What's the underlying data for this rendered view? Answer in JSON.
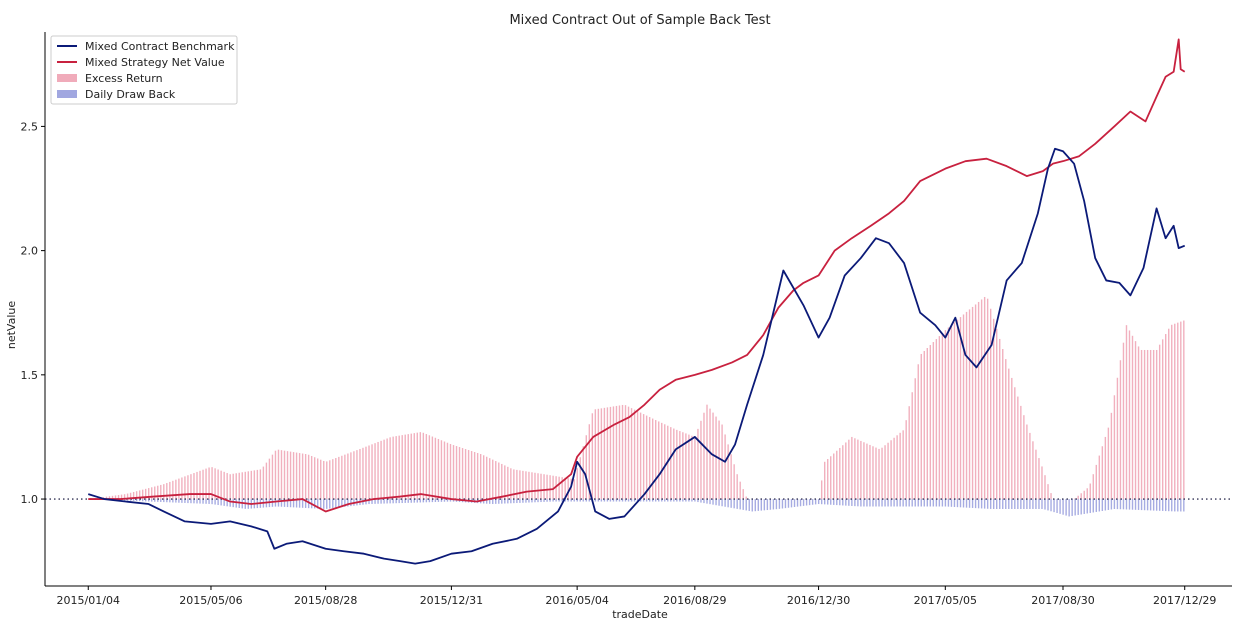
{
  "colors": {
    "benchmark": "#0b1a78",
    "strategy": "#c8213f",
    "excess": "#eb8fa3",
    "drawback": "#8289d6",
    "baseline": "#333355"
  },
  "chart_data": {
    "type": "line",
    "title": "Mixed Contract Out of Sample Back Test",
    "xlabel": "tradeDate",
    "ylabel": "netValue",
    "x_ticks": [
      "2015/01/04",
      "2015/05/06",
      "2015/08/28",
      "2015/12/31",
      "2016/05/04",
      "2016/08/29",
      "2016/12/30",
      "2017/05/05",
      "2017/08/30",
      "2017/12/29"
    ],
    "y_ticks": [
      "1.0",
      "1.5",
      "2.0",
      "2.5"
    ],
    "ylim": [
      0.65,
      2.88
    ],
    "xlim": [
      "2014/11/22",
      "2018/02/14"
    ],
    "baseline": 1.0,
    "grid": false,
    "legend_position": "top-left",
    "legend": [
      {
        "label": "Mixed Contract Benchmark",
        "kind": "line",
        "color_key": "benchmark"
      },
      {
        "label": "Mixed Strategy Net Value",
        "kind": "line",
        "color_key": "strategy"
      },
      {
        "label": "Excess Return",
        "kind": "patch",
        "color_key": "excess"
      },
      {
        "label": "Daily Draw Back",
        "kind": "patch",
        "color_key": "drawback"
      }
    ],
    "series": [
      {
        "name": "Mixed Contract Benchmark",
        "points": [
          [
            "2015/01/04",
            1.02
          ],
          [
            "2015/01/20",
            1.0
          ],
          [
            "2015/02/10",
            0.99
          ],
          [
            "2015/03/05",
            0.98
          ],
          [
            "2015/03/20",
            0.95
          ],
          [
            "2015/04/10",
            0.91
          ],
          [
            "2015/05/06",
            0.9
          ],
          [
            "2015/05/25",
            0.91
          ],
          [
            "2015/06/15",
            0.89
          ],
          [
            "2015/07/01",
            0.87
          ],
          [
            "2015/07/08",
            0.8
          ],
          [
            "2015/07/20",
            0.82
          ],
          [
            "2015/08/05",
            0.83
          ],
          [
            "2015/08/28",
            0.8
          ],
          [
            "2015/09/15",
            0.79
          ],
          [
            "2015/10/05",
            0.78
          ],
          [
            "2015/10/25",
            0.76
          ],
          [
            "2015/11/10",
            0.75
          ],
          [
            "2015/11/25",
            0.74
          ],
          [
            "2015/12/10",
            0.75
          ],
          [
            "2015/12/31",
            0.78
          ],
          [
            "2016/01/20",
            0.79
          ],
          [
            "2016/02/10",
            0.82
          ],
          [
            "2016/03/05",
            0.84
          ],
          [
            "2016/03/25",
            0.88
          ],
          [
            "2016/04/15",
            0.95
          ],
          [
            "2016/04/28",
            1.05
          ],
          [
            "2016/05/04",
            1.15
          ],
          [
            "2016/05/12",
            1.1
          ],
          [
            "2016/05/22",
            0.95
          ],
          [
            "2016/06/05",
            0.92
          ],
          [
            "2016/06/20",
            0.93
          ],
          [
            "2016/07/10",
            1.02
          ],
          [
            "2016/07/25",
            1.1
          ],
          [
            "2016/08/10",
            1.2
          ],
          [
            "2016/08/29",
            1.25
          ],
          [
            "2016/09/15",
            1.18
          ],
          [
            "2016/09/28",
            1.15
          ],
          [
            "2016/10/08",
            1.22
          ],
          [
            "2016/10/20",
            1.38
          ],
          [
            "2016/11/05",
            1.58
          ],
          [
            "2016/11/15",
            1.75
          ],
          [
            "2016/11/25",
            1.92
          ],
          [
            "2016/12/05",
            1.85
          ],
          [
            "2016/12/15",
            1.78
          ],
          [
            "2016/12/30",
            1.65
          ],
          [
            "2017/01/10",
            1.73
          ],
          [
            "2017/01/25",
            1.9
          ],
          [
            "2017/02/10",
            1.97
          ],
          [
            "2017/02/25",
            2.05
          ],
          [
            "2017/03/10",
            2.03
          ],
          [
            "2017/03/25",
            1.95
          ],
          [
            "2017/04/10",
            1.75
          ],
          [
            "2017/04/25",
            1.7
          ],
          [
            "2017/05/05",
            1.65
          ],
          [
            "2017/05/15",
            1.73
          ],
          [
            "2017/05/25",
            1.58
          ],
          [
            "2017/06/05",
            1.53
          ],
          [
            "2017/06/20",
            1.62
          ],
          [
            "2017/07/05",
            1.88
          ],
          [
            "2017/07/20",
            1.95
          ],
          [
            "2017/08/05",
            2.15
          ],
          [
            "2017/08/15",
            2.33
          ],
          [
            "2017/08/22",
            2.41
          ],
          [
            "2017/08/30",
            2.4
          ],
          [
            "2017/09/10",
            2.35
          ],
          [
            "2017/09/20",
            2.2
          ],
          [
            "2017/10/01",
            1.97
          ],
          [
            "2017/10/12",
            1.88
          ],
          [
            "2017/10/25",
            1.87
          ],
          [
            "2017/11/05",
            1.82
          ],
          [
            "2017/11/18",
            1.93
          ],
          [
            "2017/12/01",
            2.17
          ],
          [
            "2017/12/10",
            2.05
          ],
          [
            "2017/12/18",
            2.1
          ],
          [
            "2017/12/23",
            2.01
          ],
          [
            "2017/12/29",
            2.02
          ]
        ]
      },
      {
        "name": "Mixed Strategy Net Value",
        "points": [
          [
            "2015/01/04",
            1.0
          ],
          [
            "2015/02/05",
            1.0
          ],
          [
            "2015/03/10",
            1.01
          ],
          [
            "2015/04/15",
            1.02
          ],
          [
            "2015/05/06",
            1.02
          ],
          [
            "2015/05/25",
            0.99
          ],
          [
            "2015/06/15",
            0.98
          ],
          [
            "2015/07/10",
            0.99
          ],
          [
            "2015/08/05",
            1.0
          ],
          [
            "2015/08/28",
            0.95
          ],
          [
            "2015/09/20",
            0.98
          ],
          [
            "2015/10/15",
            1.0
          ],
          [
            "2015/11/10",
            1.01
          ],
          [
            "2015/12/01",
            1.02
          ],
          [
            "2015/12/31",
            1.0
          ],
          [
            "2016/01/25",
            0.99
          ],
          [
            "2016/02/20",
            1.01
          ],
          [
            "2016/03/15",
            1.03
          ],
          [
            "2016/04/10",
            1.04
          ],
          [
            "2016/04/28",
            1.1
          ],
          [
            "2016/05/04",
            1.17
          ],
          [
            "2016/05/20",
            1.25
          ],
          [
            "2016/06/10",
            1.3
          ],
          [
            "2016/06/25",
            1.33
          ],
          [
            "2016/07/10",
            1.38
          ],
          [
            "2016/07/25",
            1.44
          ],
          [
            "2016/08/10",
            1.48
          ],
          [
            "2016/08/29",
            1.5
          ],
          [
            "2016/09/15",
            1.52
          ],
          [
            "2016/10/05",
            1.55
          ],
          [
            "2016/10/20",
            1.58
          ],
          [
            "2016/11/05",
            1.66
          ],
          [
            "2016/11/20",
            1.77
          ],
          [
            "2016/12/05",
            1.84
          ],
          [
            "2016/12/15",
            1.87
          ],
          [
            "2016/12/30",
            1.9
          ],
          [
            "2017/01/15",
            2.0
          ],
          [
            "2017/02/01",
            2.05
          ],
          [
            "2017/02/20",
            2.1
          ],
          [
            "2017/03/10",
            2.15
          ],
          [
            "2017/03/25",
            2.2
          ],
          [
            "2017/04/10",
            2.28
          ],
          [
            "2017/05/05",
            2.33
          ],
          [
            "2017/05/25",
            2.36
          ],
          [
            "2017/06/15",
            2.37
          ],
          [
            "2017/07/05",
            2.34
          ],
          [
            "2017/07/25",
            2.3
          ],
          [
            "2017/08/10",
            2.32
          ],
          [
            "2017/08/20",
            2.35
          ],
          [
            "2017/08/30",
            2.36
          ],
          [
            "2017/09/15",
            2.38
          ],
          [
            "2017/10/01",
            2.43
          ],
          [
            "2017/10/20",
            2.5
          ],
          [
            "2017/11/05",
            2.56
          ],
          [
            "2017/11/20",
            2.52
          ],
          [
            "2017/12/01",
            2.62
          ],
          [
            "2017/12/10",
            2.7
          ],
          [
            "2017/12/18",
            2.72
          ],
          [
            "2017/12/23",
            2.85
          ],
          [
            "2017/12/25",
            2.73
          ],
          [
            "2017/12/29",
            2.72
          ]
        ]
      },
      {
        "name": "Excess Return",
        "kind": "bars",
        "points": [
          [
            "2015/01/04",
            1.0
          ],
          [
            "2015/02/10",
            1.02
          ],
          [
            "2015/03/20",
            1.06
          ],
          [
            "2015/05/06",
            1.13
          ],
          [
            "2015/05/25",
            1.1
          ],
          [
            "2015/06/25",
            1.12
          ],
          [
            "2015/07/10",
            1.2
          ],
          [
            "2015/08/10",
            1.18
          ],
          [
            "2015/08/28",
            1.15
          ],
          [
            "2015/09/30",
            1.2
          ],
          [
            "2015/11/01",
            1.25
          ],
          [
            "2015/12/01",
            1.27
          ],
          [
            "2015/12/31",
            1.22
          ],
          [
            "2016/01/30",
            1.18
          ],
          [
            "2016/03/01",
            1.12
          ],
          [
            "2016/04/01",
            1.1
          ],
          [
            "2016/05/01",
            1.08
          ],
          [
            "2016/05/20",
            1.36
          ],
          [
            "2016/06/20",
            1.38
          ],
          [
            "2016/07/20",
            1.32
          ],
          [
            "2016/08/10",
            1.28
          ],
          [
            "2016/08/29",
            1.25
          ],
          [
            "2016/09/10",
            1.38
          ],
          [
            "2016/09/25",
            1.3
          ],
          [
            "2016/10/10",
            1.1
          ],
          [
            "2016/10/20",
            1.0
          ],
          [
            "2016/12/30",
            1.0
          ],
          [
            "2017/01/05",
            1.15
          ],
          [
            "2017/02/01",
            1.25
          ],
          [
            "2017/03/01",
            1.2
          ],
          [
            "2017/03/25",
            1.28
          ],
          [
            "2017/04/10",
            1.58
          ],
          [
            "2017/05/05",
            1.68
          ],
          [
            "2017/05/25",
            1.75
          ],
          [
            "2017/06/15",
            1.82
          ],
          [
            "2017/07/05",
            1.55
          ],
          [
            "2017/07/25",
            1.3
          ],
          [
            "2017/08/10",
            1.12
          ],
          [
            "2017/08/20",
            1.0
          ],
          [
            "2017/09/10",
            1.0
          ],
          [
            "2017/09/25",
            1.05
          ],
          [
            "2017/10/15",
            1.3
          ],
          [
            "2017/11/01",
            1.7
          ],
          [
            "2017/11/15",
            1.6
          ],
          [
            "2017/12/01",
            1.6
          ],
          [
            "2017/12/15",
            1.7
          ],
          [
            "2017/12/29",
            1.72
          ]
        ]
      },
      {
        "name": "Daily Draw Back",
        "kind": "bars",
        "points": [
          [
            "2015/01/04",
            1.0
          ],
          [
            "2015/05/06",
            0.98
          ],
          [
            "2015/06/10",
            0.96
          ],
          [
            "2015/07/10",
            0.97
          ],
          [
            "2015/08/28",
            0.96
          ],
          [
            "2015/10/10",
            0.98
          ],
          [
            "2015/12/31",
            0.99
          ],
          [
            "2016/02/10",
            0.98
          ],
          [
            "2016/04/10",
            0.99
          ],
          [
            "2016/06/10",
            0.99
          ],
          [
            "2016/08/29",
            0.99
          ],
          [
            "2016/10/25",
            0.95
          ],
          [
            "2016/11/20",
            0.96
          ],
          [
            "2016/12/30",
            0.98
          ],
          [
            "2017/02/10",
            0.97
          ],
          [
            "2017/05/05",
            0.97
          ],
          [
            "2017/06/20",
            0.96
          ],
          [
            "2017/08/10",
            0.96
          ],
          [
            "2017/09/05",
            0.93
          ],
          [
            "2017/10/20",
            0.96
          ],
          [
            "2017/12/20",
            0.95
          ],
          [
            "2017/12/29",
            0.95
          ]
        ]
      }
    ]
  }
}
